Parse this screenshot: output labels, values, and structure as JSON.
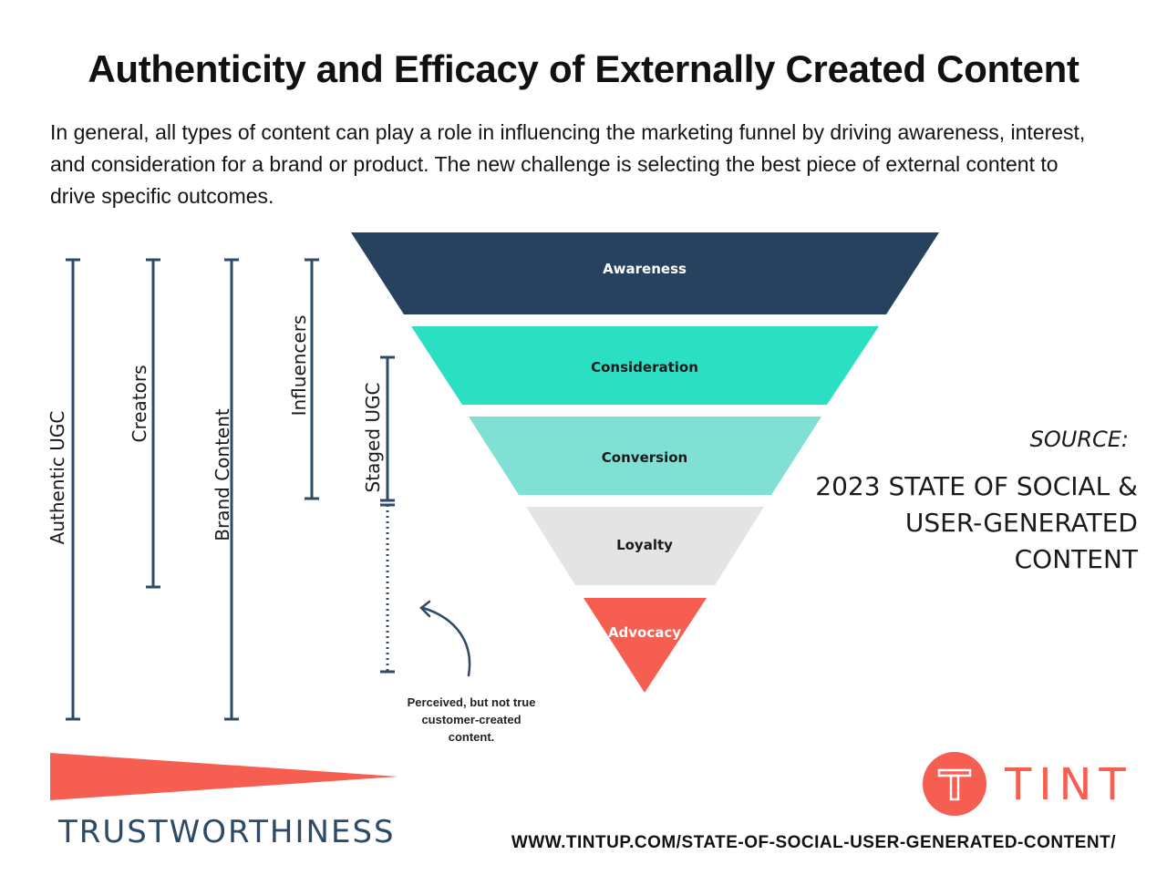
{
  "title": "Authenticity and Efficacy of Externally Created Content",
  "intro": "In general, all types of content can play a role in influencing the marketing funnel by driving awareness, interest, and consideration for a brand or product. The new challenge is selecting the best piece of external content to drive specific outcomes.",
  "content_types": [
    {
      "label": "Authentic UGC",
      "style": "solid"
    },
    {
      "label": "Creators",
      "style": "solid"
    },
    {
      "label": "Brand Content",
      "style": "solid"
    },
    {
      "label": "Influencers",
      "style": "solid"
    },
    {
      "label": "Staged UGC",
      "style": "solid-with-dotted-extension"
    }
  ],
  "funnel": [
    {
      "label": "Awareness",
      "color": "#27425f",
      "text_color": "#ffffff"
    },
    {
      "label": "Consideration",
      "color": "#2adfc2",
      "text_color": "#1a1a1a"
    },
    {
      "label": "Conversion",
      "color": "#7fe0d3",
      "text_color": "#1a1a1a"
    },
    {
      "label": "Loyalty",
      "color": "#e4e4e4",
      "text_color": "#1a1a1a"
    },
    {
      "label": "Advocacy",
      "color": "#f65e51",
      "text_color": "#ffffff"
    }
  ],
  "annotation": "Perceived, but not true customer-created content.",
  "source": {
    "label": "SOURCE:",
    "text": "2023 STATE OF SOCIAL & USER-GENERATED CONTENT"
  },
  "trust_scale": {
    "label": "TRUSTWORTHINESS",
    "color": "#f65e51"
  },
  "logo": {
    "text": "TINT",
    "color": "#f65e51",
    "icon": "tint-t-icon"
  },
  "url": "WWW.TINTUP.COM/STATE-OF-SOCIAL-USER-GENERATED-CONTENT/",
  "colors": {
    "navy": "#2d4a68",
    "accent": "#f65e51"
  }
}
